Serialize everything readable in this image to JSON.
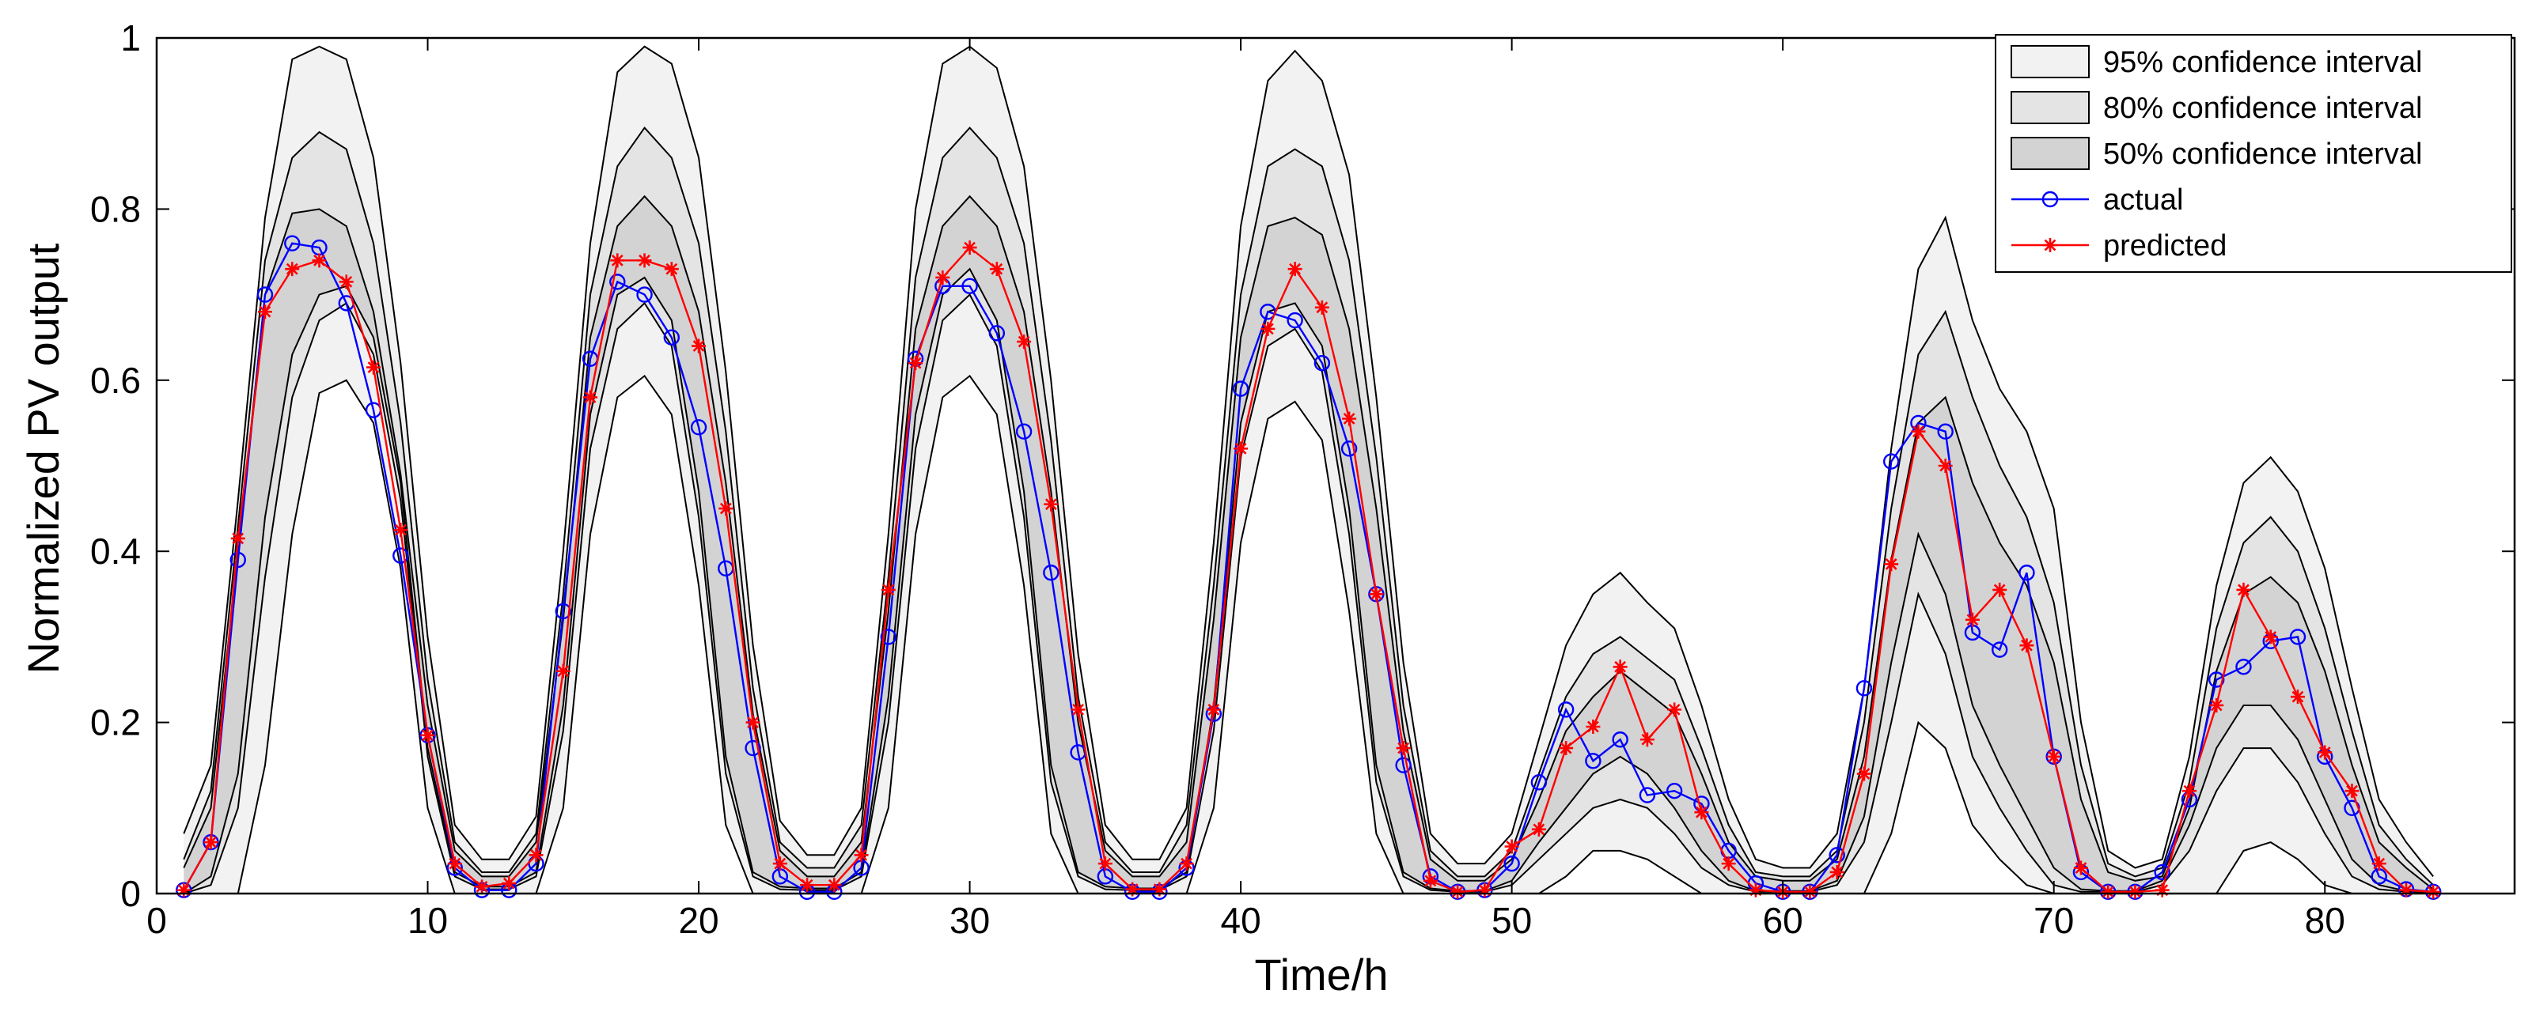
{
  "chart_data": {
    "type": "line",
    "title": "",
    "xlabel": "Time/h",
    "ylabel": "Normalized PV output",
    "xlim": [
      0,
      87
    ],
    "ylim": [
      0,
      1
    ],
    "xticks": [
      0,
      10,
      20,
      30,
      40,
      50,
      60,
      70,
      80
    ],
    "yticks": [
      0,
      0.2,
      0.4,
      0.6,
      0.8,
      1
    ],
    "ytick_labels": [
      "0",
      "0.2",
      "0.4",
      "0.6",
      "0.8",
      "1"
    ],
    "grid": false,
    "legend_position": "top-right",
    "x": [
      1,
      2,
      3,
      4,
      5,
      6,
      7,
      8,
      9,
      10,
      11,
      12,
      13,
      14,
      15,
      16,
      17,
      18,
      19,
      20,
      21,
      22,
      23,
      24,
      25,
      26,
      27,
      28,
      29,
      30,
      31,
      32,
      33,
      34,
      35,
      36,
      37,
      38,
      39,
      40,
      41,
      42,
      43,
      44,
      45,
      46,
      47,
      48,
      49,
      50,
      51,
      52,
      53,
      54,
      55,
      56,
      57,
      58,
      59,
      60,
      61,
      62,
      63,
      64,
      65,
      66,
      67,
      68,
      69,
      70,
      71,
      72,
      73,
      74,
      75,
      76,
      77,
      78,
      79,
      80,
      81,
      82,
      83,
      84
    ],
    "series": [
      {
        "name": "actual",
        "color": "#0000ff",
        "marker": "circle",
        "values": [
          0.004,
          0.06,
          0.39,
          0.7,
          0.76,
          0.755,
          0.69,
          0.565,
          0.395,
          0.185,
          0.03,
          0.004,
          0.004,
          0.035,
          0.33,
          0.625,
          0.715,
          0.7,
          0.65,
          0.545,
          0.38,
          0.17,
          0.02,
          0.002,
          0.002,
          0.03,
          0.3,
          0.625,
          0.71,
          0.71,
          0.655,
          0.54,
          0.375,
          0.165,
          0.02,
          0.002,
          0.002,
          0.03,
          0.21,
          0.59,
          0.68,
          0.67,
          0.62,
          0.52,
          0.35,
          0.15,
          0.02,
          0.002,
          0.004,
          0.035,
          0.13,
          0.215,
          0.155,
          0.18,
          0.115,
          0.12,
          0.105,
          0.05,
          0.012,
          0.002,
          0.002,
          0.045,
          0.24,
          0.505,
          0.55,
          0.54,
          0.305,
          0.285,
          0.375,
          0.16,
          0.025,
          0.002,
          0.002,
          0.025,
          0.11,
          0.25,
          0.265,
          0.295,
          0.3,
          0.16,
          0.1,
          0.02,
          0.005,
          0.002
        ]
      },
      {
        "name": "predicted",
        "color": "#ff0000",
        "marker": "star",
        "values": [
          0.004,
          0.06,
          0.415,
          0.68,
          0.73,
          0.74,
          0.715,
          0.615,
          0.425,
          0.185,
          0.035,
          0.008,
          0.012,
          0.045,
          0.26,
          0.58,
          0.74,
          0.74,
          0.73,
          0.64,
          0.45,
          0.2,
          0.035,
          0.01,
          0.01,
          0.045,
          0.355,
          0.62,
          0.72,
          0.755,
          0.73,
          0.645,
          0.455,
          0.215,
          0.035,
          0.005,
          0.005,
          0.035,
          0.215,
          0.52,
          0.66,
          0.73,
          0.685,
          0.555,
          0.35,
          0.17,
          0.015,
          0.002,
          0.004,
          0.055,
          0.075,
          0.17,
          0.195,
          0.265,
          0.18,
          0.215,
          0.095,
          0.035,
          0.004,
          0.002,
          0.002,
          0.025,
          0.14,
          0.385,
          0.54,
          0.5,
          0.32,
          0.355,
          0.29,
          0.16,
          0.03,
          0.002,
          0.002,
          0.004,
          0.12,
          0.22,
          0.355,
          0.3,
          0.23,
          0.165,
          0.12,
          0.035,
          0.004,
          0.002
        ]
      }
    ],
    "confidence_bands": [
      {
        "name": "95% confidence interval",
        "fill": "#f2f2f2",
        "upper": [
          0.07,
          0.15,
          0.46,
          0.79,
          0.975,
          0.99,
          0.975,
          0.86,
          0.62,
          0.3,
          0.08,
          0.04,
          0.04,
          0.09,
          0.4,
          0.76,
          0.96,
          0.99,
          0.97,
          0.86,
          0.61,
          0.29,
          0.085,
          0.045,
          0.045,
          0.1,
          0.42,
          0.8,
          0.97,
          0.99,
          0.965,
          0.85,
          0.6,
          0.28,
          0.08,
          0.04,
          0.04,
          0.1,
          0.41,
          0.78,
          0.95,
          0.985,
          0.95,
          0.84,
          0.58,
          0.27,
          0.07,
          0.035,
          0.035,
          0.07,
          0.18,
          0.29,
          0.35,
          0.375,
          0.34,
          0.31,
          0.22,
          0.11,
          0.04,
          0.03,
          0.03,
          0.07,
          0.24,
          0.52,
          0.73,
          0.79,
          0.67,
          0.59,
          0.54,
          0.45,
          0.2,
          0.05,
          0.03,
          0.04,
          0.16,
          0.36,
          0.48,
          0.51,
          0.47,
          0.38,
          0.24,
          0.11,
          0.06,
          0.02
        ],
        "lower": [
          0,
          0,
          0,
          0.15,
          0.42,
          0.585,
          0.6,
          0.55,
          0.38,
          0.1,
          0,
          0,
          0,
          0,
          0.1,
          0.42,
          0.58,
          0.605,
          0.56,
          0.36,
          0.08,
          0,
          0,
          0,
          0,
          0,
          0.1,
          0.42,
          0.58,
          0.605,
          0.56,
          0.36,
          0.07,
          0,
          0,
          0,
          0,
          0,
          0.1,
          0.41,
          0.555,
          0.575,
          0.53,
          0.33,
          0.07,
          0,
          0,
          0,
          0,
          0,
          0,
          0.02,
          0.05,
          0.05,
          0.04,
          0.02,
          0,
          0,
          0,
          0,
          0,
          0,
          0,
          0.07,
          0.2,
          0.17,
          0.08,
          0.04,
          0.01,
          0,
          0,
          0,
          0,
          0,
          0,
          0,
          0.05,
          0.06,
          0.04,
          0.01,
          0,
          0,
          0,
          0
        ]
      },
      {
        "name": "80% confidence interval",
        "fill": "#e4e4e4",
        "upper": [
          0.04,
          0.12,
          0.43,
          0.74,
          0.86,
          0.89,
          0.87,
          0.76,
          0.55,
          0.25,
          0.06,
          0.025,
          0.025,
          0.07,
          0.35,
          0.7,
          0.85,
          0.895,
          0.86,
          0.76,
          0.54,
          0.24,
          0.06,
          0.03,
          0.03,
          0.08,
          0.37,
          0.72,
          0.86,
          0.895,
          0.86,
          0.76,
          0.53,
          0.23,
          0.06,
          0.025,
          0.025,
          0.08,
          0.36,
          0.7,
          0.85,
          0.87,
          0.85,
          0.74,
          0.51,
          0.22,
          0.05,
          0.02,
          0.02,
          0.05,
          0.14,
          0.23,
          0.28,
          0.3,
          0.275,
          0.25,
          0.17,
          0.08,
          0.025,
          0.02,
          0.02,
          0.05,
          0.2,
          0.45,
          0.63,
          0.68,
          0.58,
          0.5,
          0.44,
          0.34,
          0.15,
          0.035,
          0.02,
          0.03,
          0.13,
          0.31,
          0.41,
          0.44,
          0.4,
          0.31,
          0.19,
          0.08,
          0.04,
          0.01
        ],
        "lower": [
          0,
          0.01,
          0.1,
          0.37,
          0.58,
          0.67,
          0.69,
          0.63,
          0.46,
          0.16,
          0.02,
          0.005,
          0.005,
          0.02,
          0.19,
          0.52,
          0.66,
          0.69,
          0.64,
          0.44,
          0.14,
          0.02,
          0.005,
          0.004,
          0.004,
          0.02,
          0.2,
          0.52,
          0.67,
          0.7,
          0.64,
          0.44,
          0.13,
          0.02,
          0.005,
          0.004,
          0.004,
          0.02,
          0.19,
          0.51,
          0.64,
          0.66,
          0.61,
          0.42,
          0.13,
          0.02,
          0.004,
          0.002,
          0.002,
          0.01,
          0.04,
          0.07,
          0.1,
          0.11,
          0.1,
          0.07,
          0.03,
          0.01,
          0.002,
          0.002,
          0.002,
          0.01,
          0.06,
          0.2,
          0.35,
          0.28,
          0.16,
          0.1,
          0.05,
          0.01,
          0.002,
          0.002,
          0.002,
          0.01,
          0.05,
          0.12,
          0.17,
          0.17,
          0.13,
          0.07,
          0.02,
          0.005,
          0.002,
          0
        ],
        "inner_upper": [
          0.03,
          0.1,
          0.4,
          0.7,
          0.795,
          0.8,
          0.78,
          0.68,
          0.49,
          0.22,
          0.05,
          0.02,
          0.02,
          0.06,
          0.32,
          0.65,
          0.78,
          0.815,
          0.78,
          0.68,
          0.48,
          0.21,
          0.05,
          0.02,
          0.02,
          0.06,
          0.33,
          0.66,
          0.78,
          0.815,
          0.78,
          0.68,
          0.47,
          0.2,
          0.05,
          0.02,
          0.02,
          0.06,
          0.32,
          0.65,
          0.78,
          0.79,
          0.77,
          0.66,
          0.45,
          0.19,
          0.04,
          0.015,
          0.015,
          0.04,
          0.11,
          0.19,
          0.23,
          0.26,
          0.235,
          0.21,
          0.14,
          0.06,
          0.02,
          0.015,
          0.015,
          0.04,
          0.16,
          0.39,
          0.55,
          0.58,
          0.48,
          0.41,
          0.36,
          0.27,
          0.11,
          0.025,
          0.015,
          0.02,
          0.1,
          0.26,
          0.35,
          0.37,
          0.34,
          0.26,
          0.15,
          0.06,
          0.03,
          0.005
        ],
        "inner_lower": [
          0,
          0.02,
          0.14,
          0.44,
          0.63,
          0.7,
          0.71,
          0.65,
          0.48,
          0.17,
          0.025,
          0.008,
          0.008,
          0.025,
          0.22,
          0.56,
          0.7,
          0.72,
          0.67,
          0.47,
          0.16,
          0.025,
          0.008,
          0.006,
          0.006,
          0.025,
          0.23,
          0.56,
          0.7,
          0.73,
          0.67,
          0.47,
          0.15,
          0.025,
          0.008,
          0.006,
          0.006,
          0.025,
          0.22,
          0.55,
          0.68,
          0.69,
          0.64,
          0.45,
          0.15,
          0.025,
          0.006,
          0.003,
          0.003,
          0.015,
          0.06,
          0.1,
          0.14,
          0.16,
          0.14,
          0.1,
          0.05,
          0.015,
          0.003,
          0.003,
          0.003,
          0.015,
          0.09,
          0.27,
          0.42,
          0.35,
          0.22,
          0.15,
          0.09,
          0.03,
          0.005,
          0.003,
          0.003,
          0.015,
          0.08,
          0.17,
          0.22,
          0.22,
          0.18,
          0.11,
          0.04,
          0.01,
          0.003,
          0
        ]
      },
      {
        "name": "50% confidence interval",
        "fill": "#d3d3d3",
        "upper": [
          0.03,
          0.1,
          0.4,
          0.7,
          0.795,
          0.8,
          0.78,
          0.68,
          0.49,
          0.22,
          0.05,
          0.02,
          0.02,
          0.06,
          0.32,
          0.65,
          0.78,
          0.815,
          0.78,
          0.68,
          0.48,
          0.21,
          0.05,
          0.02,
          0.02,
          0.06,
          0.33,
          0.66,
          0.78,
          0.815,
          0.78,
          0.68,
          0.47,
          0.2,
          0.05,
          0.02,
          0.02,
          0.06,
          0.32,
          0.65,
          0.78,
          0.79,
          0.77,
          0.66,
          0.45,
          0.19,
          0.04,
          0.015,
          0.015,
          0.04,
          0.11,
          0.19,
          0.23,
          0.26,
          0.235,
          0.21,
          0.14,
          0.06,
          0.02,
          0.015,
          0.015,
          0.04,
          0.16,
          0.39,
          0.55,
          0.58,
          0.48,
          0.41,
          0.36,
          0.27,
          0.11,
          0.025,
          0.015,
          0.02,
          0.1,
          0.26,
          0.35,
          0.37,
          0.34,
          0.26,
          0.15,
          0.06,
          0.03,
          0.005
        ],
        "lower": [
          0,
          0.02,
          0.14,
          0.44,
          0.63,
          0.7,
          0.71,
          0.65,
          0.48,
          0.17,
          0.025,
          0.008,
          0.008,
          0.025,
          0.22,
          0.56,
          0.7,
          0.72,
          0.67,
          0.47,
          0.16,
          0.025,
          0.008,
          0.006,
          0.006,
          0.025,
          0.23,
          0.56,
          0.7,
          0.73,
          0.67,
          0.47,
          0.15,
          0.025,
          0.008,
          0.006,
          0.006,
          0.025,
          0.22,
          0.55,
          0.68,
          0.69,
          0.64,
          0.45,
          0.15,
          0.025,
          0.006,
          0.003,
          0.003,
          0.015,
          0.06,
          0.1,
          0.14,
          0.16,
          0.14,
          0.1,
          0.05,
          0.015,
          0.003,
          0.003,
          0.003,
          0.015,
          0.09,
          0.27,
          0.42,
          0.35,
          0.22,
          0.15,
          0.09,
          0.03,
          0.005,
          0.003,
          0.003,
          0.015,
          0.08,
          0.17,
          0.22,
          0.22,
          0.18,
          0.11,
          0.04,
          0.01,
          0.003,
          0
        ]
      }
    ],
    "legend": [
      {
        "label": "95% confidence interval",
        "kind": "patch",
        "fill": "#f2f2f2"
      },
      {
        "label": "80% confidence interval",
        "kind": "patch",
        "fill": "#e4e4e4"
      },
      {
        "label": "50% confidence interval",
        "kind": "patch",
        "fill": "#d3d3d3"
      },
      {
        "label": "actual",
        "kind": "line",
        "color": "#0000ff",
        "marker": "circle"
      },
      {
        "label": "predicted",
        "kind": "line",
        "color": "#ff0000",
        "marker": "star"
      }
    ]
  }
}
